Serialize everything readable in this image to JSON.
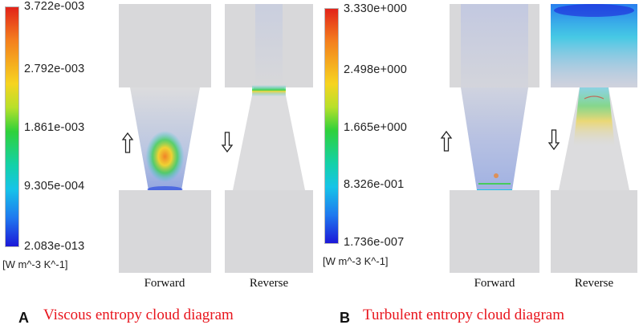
{
  "panels": [
    {
      "letter": "A",
      "title": "Viscous entropy cloud diagram",
      "colorbar": {
        "ticks": [
          "3.722e-003",
          "2.792e-003",
          "1.861e-003",
          "9.305e-004",
          "2.083e-013"
        ],
        "unit": "[W m^-3 K^-1]"
      },
      "cases": [
        {
          "label": "Forward",
          "flow_arrow": "up-arrow"
        },
        {
          "label": "Reverse",
          "flow_arrow": "down-arrow"
        }
      ]
    },
    {
      "letter": "B",
      "title": "Turbulent entropy cloud diagram",
      "colorbar": {
        "ticks": [
          "3.330e+000",
          "2.498e+000",
          "1.665e+000",
          "8.326e-001",
          "1.736e-007"
        ],
        "unit": "[W m^-3 K^-1]"
      },
      "cases": [
        {
          "label": "Forward",
          "flow_arrow": "up-arrow"
        },
        {
          "label": "Reverse",
          "flow_arrow": "down-arrow"
        }
      ]
    }
  ],
  "colors": {
    "duct_fill": "#d8d8da",
    "title_color": "#e8141c",
    "colormap": [
      "#1c18d8",
      "#1f79ef",
      "#16c4e8",
      "#2fd13b",
      "#b7e02a",
      "#f6d420",
      "#f4801e",
      "#e2231a"
    ]
  }
}
